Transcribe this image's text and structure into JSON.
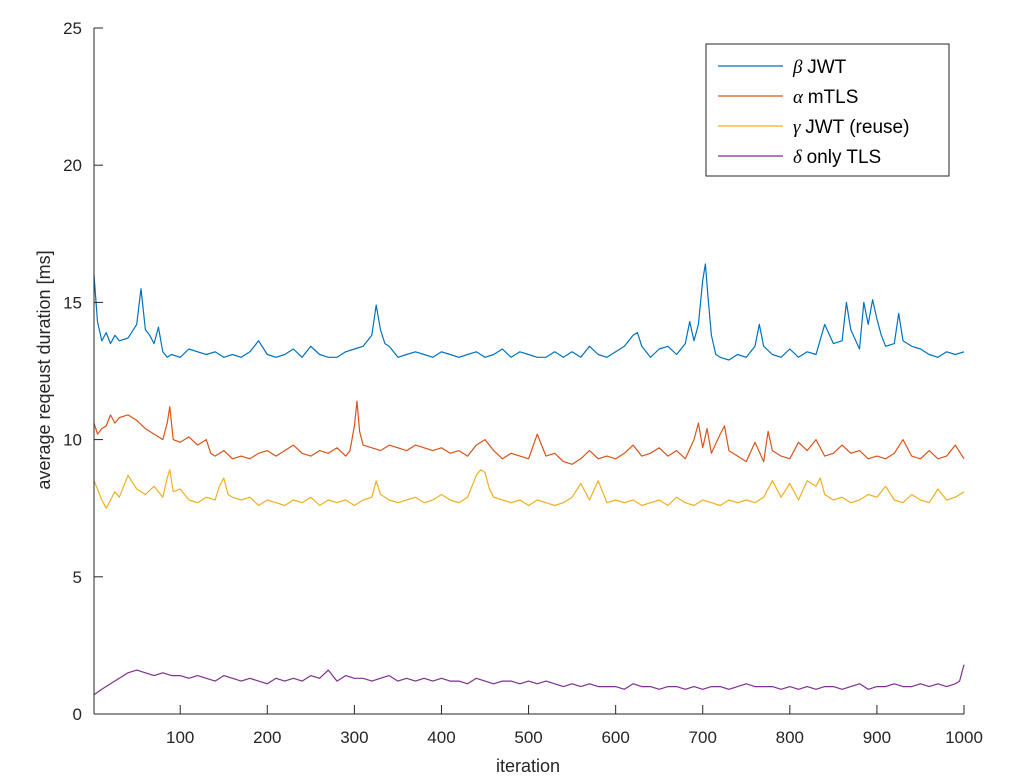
{
  "chart_data": {
    "type": "line",
    "title": "",
    "xlabel": "iteration",
    "ylabel": "average reqeust duration [ms]",
    "xlim": [
      1,
      1000
    ],
    "ylim": [
      0,
      25
    ],
    "xticks": [
      100,
      200,
      300,
      400,
      500,
      600,
      700,
      800,
      900,
      1000
    ],
    "yticks": [
      0,
      5,
      10,
      15,
      20,
      25
    ],
    "grid": false,
    "legend_position": "top-right",
    "series": [
      {
        "name": "JWT",
        "symbol": "β",
        "color": "#0072BD",
        "x": [
          1,
          5,
          10,
          15,
          20,
          25,
          30,
          40,
          50,
          55,
          60,
          65,
          70,
          75,
          80,
          85,
          90,
          100,
          110,
          120,
          130,
          140,
          150,
          160,
          170,
          180,
          190,
          200,
          210,
          220,
          230,
          240,
          250,
          260,
          270,
          280,
          290,
          300,
          310,
          320,
          325,
          330,
          335,
          340,
          350,
          360,
          370,
          380,
          390,
          400,
          410,
          420,
          430,
          440,
          450,
          460,
          470,
          480,
          490,
          500,
          510,
          520,
          530,
          540,
          550,
          560,
          570,
          580,
          590,
          600,
          610,
          620,
          625,
          630,
          640,
          650,
          660,
          670,
          680,
          685,
          690,
          695,
          700,
          703,
          706,
          710,
          715,
          720,
          730,
          740,
          750,
          760,
          765,
          770,
          780,
          790,
          800,
          810,
          820,
          830,
          840,
          850,
          860,
          865,
          870,
          880,
          885,
          890,
          895,
          900,
          905,
          910,
          920,
          925,
          930,
          940,
          950,
          960,
          970,
          980,
          990,
          1000
        ],
        "y": [
          16.0,
          14.3,
          13.6,
          13.9,
          13.5,
          13.8,
          13.6,
          13.7,
          14.2,
          15.5,
          14.0,
          13.8,
          13.5,
          14.1,
          13.2,
          13.0,
          13.1,
          13.0,
          13.3,
          13.2,
          13.1,
          13.2,
          13.0,
          13.1,
          13.0,
          13.2,
          13.6,
          13.1,
          13.0,
          13.1,
          13.3,
          13.0,
          13.4,
          13.1,
          13.0,
          13.0,
          13.2,
          13.3,
          13.4,
          13.8,
          14.9,
          14.0,
          13.5,
          13.4,
          13.0,
          13.1,
          13.2,
          13.1,
          13.0,
          13.2,
          13.1,
          13.0,
          13.1,
          13.2,
          13.0,
          13.1,
          13.3,
          13.0,
          13.2,
          13.1,
          13.0,
          13.0,
          13.2,
          13.0,
          13.2,
          13.0,
          13.4,
          13.1,
          13.0,
          13.2,
          13.4,
          13.8,
          13.9,
          13.4,
          13.0,
          13.3,
          13.4,
          13.1,
          13.5,
          14.3,
          13.6,
          14.2,
          15.8,
          16.4,
          15.2,
          13.8,
          13.1,
          13.0,
          12.9,
          13.1,
          13.0,
          13.4,
          14.2,
          13.4,
          13.1,
          13.0,
          13.3,
          13.0,
          13.2,
          13.1,
          14.2,
          13.5,
          13.6,
          15.0,
          14.0,
          13.3,
          15.0,
          14.2,
          15.1,
          14.4,
          13.8,
          13.4,
          13.5,
          14.6,
          13.6,
          13.4,
          13.3,
          13.1,
          13.0,
          13.2,
          13.1,
          13.2
        ]
      },
      {
        "name": "mTLS",
        "symbol": "α",
        "color": "#D95319",
        "x": [
          1,
          5,
          10,
          15,
          20,
          25,
          30,
          40,
          50,
          60,
          70,
          80,
          85,
          88,
          92,
          100,
          110,
          120,
          130,
          135,
          140,
          150,
          160,
          170,
          180,
          190,
          200,
          210,
          220,
          230,
          240,
          250,
          260,
          270,
          280,
          290,
          295,
          300,
          303,
          306,
          310,
          320,
          330,
          340,
          350,
          360,
          370,
          380,
          390,
          400,
          410,
          420,
          430,
          440,
          450,
          460,
          470,
          480,
          490,
          500,
          510,
          515,
          520,
          530,
          540,
          550,
          560,
          570,
          580,
          590,
          600,
          610,
          620,
          630,
          640,
          650,
          660,
          670,
          680,
          690,
          695,
          700,
          705,
          710,
          720,
          725,
          730,
          740,
          750,
          760,
          770,
          775,
          780,
          790,
          800,
          810,
          820,
          830,
          840,
          850,
          860,
          870,
          880,
          890,
          900,
          910,
          920,
          930,
          940,
          950,
          960,
          970,
          980,
          990,
          1000
        ],
        "y": [
          10.6,
          10.2,
          10.4,
          10.5,
          10.9,
          10.6,
          10.8,
          10.9,
          10.7,
          10.4,
          10.2,
          10.0,
          10.6,
          11.2,
          10.0,
          9.9,
          10.1,
          9.8,
          10.0,
          9.5,
          9.4,
          9.6,
          9.3,
          9.4,
          9.3,
          9.5,
          9.6,
          9.4,
          9.6,
          9.8,
          9.5,
          9.4,
          9.6,
          9.5,
          9.7,
          9.4,
          9.6,
          10.5,
          11.4,
          10.3,
          9.8,
          9.7,
          9.6,
          9.8,
          9.7,
          9.6,
          9.8,
          9.7,
          9.6,
          9.7,
          9.5,
          9.6,
          9.4,
          9.8,
          10.0,
          9.6,
          9.3,
          9.5,
          9.4,
          9.3,
          10.2,
          9.8,
          9.4,
          9.5,
          9.2,
          9.1,
          9.3,
          9.6,
          9.3,
          9.4,
          9.3,
          9.5,
          9.8,
          9.4,
          9.5,
          9.7,
          9.4,
          9.6,
          9.3,
          10.0,
          10.6,
          9.7,
          10.4,
          9.5,
          10.2,
          10.5,
          9.6,
          9.4,
          9.2,
          9.9,
          9.2,
          10.3,
          9.6,
          9.4,
          9.3,
          9.9,
          9.6,
          10.0,
          9.4,
          9.5,
          9.8,
          9.5,
          9.6,
          9.3,
          9.4,
          9.3,
          9.5,
          10.0,
          9.4,
          9.3,
          9.6,
          9.3,
          9.4,
          9.8,
          9.3
        ]
      },
      {
        "name": "JWT (reuse)",
        "symbol": "γ",
        "color": "#EDB120",
        "x": [
          1,
          5,
          10,
          15,
          20,
          25,
          30,
          40,
          50,
          60,
          70,
          80,
          85,
          88,
          92,
          100,
          110,
          120,
          130,
          140,
          145,
          150,
          155,
          160,
          170,
          180,
          190,
          200,
          210,
          220,
          230,
          240,
          250,
          260,
          270,
          280,
          290,
          300,
          310,
          320,
          325,
          330,
          340,
          350,
          360,
          370,
          380,
          390,
          400,
          410,
          420,
          430,
          440,
          445,
          450,
          455,
          460,
          470,
          480,
          490,
          500,
          510,
          520,
          530,
          540,
          550,
          560,
          570,
          580,
          590,
          600,
          610,
          620,
          630,
          640,
          650,
          660,
          670,
          680,
          690,
          700,
          710,
          720,
          730,
          740,
          750,
          760,
          770,
          780,
          785,
          790,
          800,
          810,
          820,
          830,
          835,
          840,
          850,
          860,
          870,
          880,
          890,
          900,
          910,
          920,
          930,
          940,
          950,
          960,
          970,
          980,
          990,
          1000
        ],
        "y": [
          8.5,
          8.2,
          7.8,
          7.5,
          7.8,
          8.1,
          7.9,
          8.7,
          8.2,
          8.0,
          8.3,
          7.9,
          8.6,
          8.9,
          8.1,
          8.2,
          7.8,
          7.7,
          7.9,
          7.8,
          8.3,
          8.6,
          8.0,
          7.9,
          7.8,
          7.9,
          7.6,
          7.8,
          7.7,
          7.6,
          7.8,
          7.7,
          7.9,
          7.6,
          7.8,
          7.7,
          7.8,
          7.6,
          7.8,
          7.9,
          8.5,
          8.0,
          7.8,
          7.7,
          7.8,
          7.9,
          7.7,
          7.8,
          8.0,
          7.8,
          7.7,
          7.9,
          8.7,
          8.9,
          8.8,
          8.2,
          7.9,
          7.8,
          7.7,
          7.8,
          7.6,
          7.8,
          7.7,
          7.6,
          7.7,
          7.9,
          8.4,
          7.8,
          8.5,
          7.7,
          7.8,
          7.7,
          7.8,
          7.6,
          7.7,
          7.8,
          7.6,
          7.9,
          7.7,
          7.6,
          7.8,
          7.7,
          7.6,
          7.8,
          7.7,
          7.8,
          7.7,
          7.9,
          8.5,
          8.2,
          7.9,
          8.4,
          7.8,
          8.5,
          8.3,
          8.6,
          8.0,
          7.8,
          7.9,
          7.7,
          7.8,
          8.0,
          7.9,
          8.3,
          7.8,
          7.7,
          8.0,
          7.8,
          7.7,
          8.2,
          7.8,
          7.9,
          8.1
        ]
      },
      {
        "name": "only TLS",
        "symbol": "δ",
        "color": "#7E2F8E",
        "x": [
          1,
          10,
          20,
          30,
          40,
          50,
          60,
          70,
          80,
          90,
          100,
          110,
          120,
          130,
          140,
          150,
          160,
          170,
          180,
          190,
          200,
          210,
          220,
          230,
          240,
          250,
          260,
          270,
          280,
          290,
          300,
          310,
          320,
          330,
          340,
          350,
          360,
          370,
          380,
          390,
          400,
          410,
          420,
          430,
          440,
          450,
          460,
          470,
          480,
          490,
          500,
          510,
          520,
          530,
          540,
          550,
          560,
          570,
          580,
          590,
          600,
          610,
          620,
          630,
          640,
          650,
          660,
          670,
          680,
          690,
          700,
          710,
          720,
          730,
          740,
          750,
          760,
          770,
          780,
          790,
          800,
          810,
          820,
          830,
          840,
          850,
          860,
          870,
          880,
          890,
          900,
          910,
          920,
          930,
          940,
          950,
          960,
          970,
          980,
          990,
          995,
          1000
        ],
        "y": [
          0.7,
          0.9,
          1.1,
          1.3,
          1.5,
          1.6,
          1.5,
          1.4,
          1.5,
          1.4,
          1.4,
          1.3,
          1.4,
          1.3,
          1.2,
          1.4,
          1.3,
          1.2,
          1.3,
          1.2,
          1.1,
          1.3,
          1.2,
          1.3,
          1.2,
          1.4,
          1.3,
          1.6,
          1.2,
          1.4,
          1.3,
          1.3,
          1.2,
          1.3,
          1.4,
          1.2,
          1.3,
          1.2,
          1.3,
          1.2,
          1.3,
          1.2,
          1.2,
          1.1,
          1.3,
          1.2,
          1.1,
          1.2,
          1.2,
          1.1,
          1.2,
          1.1,
          1.2,
          1.1,
          1.0,
          1.1,
          1.0,
          1.1,
          1.0,
          1.0,
          1.0,
          0.9,
          1.1,
          1.0,
          1.0,
          0.9,
          1.0,
          1.0,
          0.9,
          1.0,
          0.9,
          1.0,
          1.0,
          0.9,
          1.0,
          1.1,
          1.0,
          1.0,
          1.0,
          0.9,
          1.0,
          0.9,
          1.0,
          0.9,
          1.0,
          1.0,
          0.9,
          1.0,
          1.1,
          0.9,
          1.0,
          1.0,
          1.1,
          1.0,
          1.0,
          1.1,
          1.0,
          1.1,
          1.0,
          1.1,
          1.2,
          1.8
        ]
      }
    ]
  }
}
